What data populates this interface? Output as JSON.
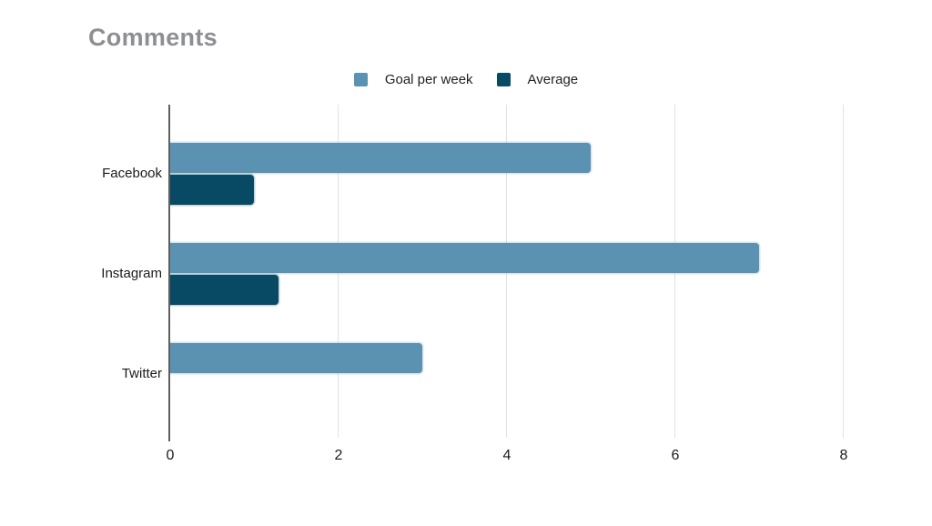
{
  "title": "Comments",
  "chart_data": {
    "type": "bar",
    "orientation": "horizontal",
    "title": "Comments",
    "categories": [
      "Facebook",
      "Instagram",
      "Twitter"
    ],
    "series": [
      {
        "name": "Goal per week",
        "color": "#5b92b1",
        "values": [
          5,
          7,
          3
        ]
      },
      {
        "name": "Average",
        "color": "#084a63",
        "values": [
          1,
          1.3,
          0
        ]
      }
    ],
    "xlabel": "",
    "ylabel": "",
    "xlim": [
      0,
      8
    ],
    "x_ticks": [
      0,
      2,
      4,
      6,
      8
    ],
    "grid": "vertical",
    "legend_position": "top-center"
  },
  "colors": {
    "title": "#8d8f92",
    "axis_line": "#5f5f5f",
    "gridline": "#e2e2e2",
    "tick_label": "#1a1a1a",
    "category_label": "#1a1a1a",
    "background": "#ffffff"
  }
}
